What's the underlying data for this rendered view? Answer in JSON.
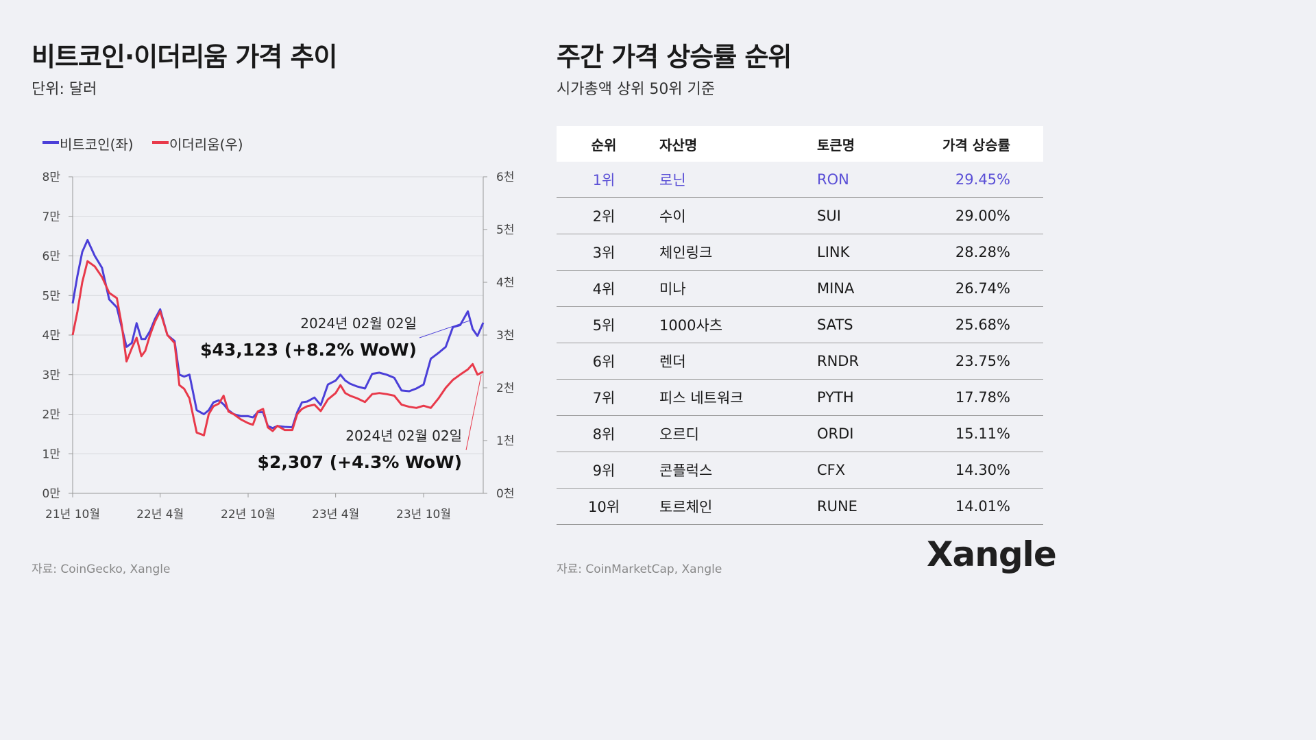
{
  "left": {
    "title": "비트코인·이더리움 가격 추이",
    "subtitle": "단위: 달러",
    "source": "자료: CoinGecko, Xangle"
  },
  "right": {
    "title": "주간 가격 상승률 순위",
    "subtitle": "시가총액 상위 50위 기준",
    "source": "자료: CoinMarketCap, Xangle",
    "logo": "Xangle",
    "highlight_color": "#5a4fd6",
    "columns": [
      "순위",
      "자산명",
      "토큰명",
      "가격 상승률"
    ],
    "rows": [
      [
        "1위",
        "로닌",
        "RON",
        "29.45%"
      ],
      [
        "2위",
        "수이",
        "SUI",
        "29.00%"
      ],
      [
        "3위",
        "체인링크",
        "LINK",
        "28.28%"
      ],
      [
        "4위",
        "미나",
        "MINA",
        "26.74%"
      ],
      [
        "5위",
        "1000사츠",
        "SATS",
        "25.68%"
      ],
      [
        "6위",
        "렌더",
        "RNDR",
        "23.75%"
      ],
      [
        "7위",
        "피스 네트워크",
        "PYTH",
        "17.78%"
      ],
      [
        "8위",
        "오르디",
        "ORDI",
        "15.11%"
      ],
      [
        "9위",
        "콘플럭스",
        "CFX",
        "14.30%"
      ],
      [
        "10위",
        "토르체인",
        "RUNE",
        "14.01%"
      ]
    ]
  },
  "chart_data": {
    "type": "line",
    "legend": [
      "비트코인(좌)",
      "이더리움(우)"
    ],
    "legend_placement": "top-left",
    "grid": true,
    "x_ticks": [
      {
        "date": "2021-10-01",
        "label": "21년 10월"
      },
      {
        "date": "2022-04-01",
        "label": "22년 4월"
      },
      {
        "date": "2022-10-01",
        "label": "22년 10월"
      },
      {
        "date": "2023-04-01",
        "label": "23년 4월"
      },
      {
        "date": "2023-10-01",
        "label": "23년 10월"
      }
    ],
    "xlim": [
      "2021-10-01",
      "2024-02-02"
    ],
    "y_left": {
      "lim": [
        0,
        80000
      ],
      "ticks": [
        "0만",
        "1만",
        "2만",
        "3만",
        "4만",
        "5만",
        "6만",
        "7만",
        "8만"
      ]
    },
    "y_right": {
      "lim": [
        0,
        6000
      ],
      "ticks": [
        "0천",
        "1천",
        "2천",
        "3천",
        "4천",
        "5천",
        "6천"
      ]
    },
    "dates": [
      "2021-10-01",
      "2021-10-11",
      "2021-10-21",
      "2021-11-01",
      "2021-11-16",
      "2021-12-01",
      "2021-12-16",
      "2022-01-01",
      "2022-01-11",
      "2022-01-21",
      "2022-02-01",
      "2022-02-11",
      "2022-02-21",
      "2022-03-01",
      "2022-03-11",
      "2022-03-21",
      "2022-04-01",
      "2022-04-16",
      "2022-05-01",
      "2022-05-11",
      "2022-05-21",
      "2022-06-01",
      "2022-06-16",
      "2022-07-01",
      "2022-07-11",
      "2022-07-21",
      "2022-08-01",
      "2022-08-11",
      "2022-08-21",
      "2022-09-01",
      "2022-09-16",
      "2022-10-01",
      "2022-10-11",
      "2022-10-21",
      "2022-11-01",
      "2022-11-11",
      "2022-11-21",
      "2022-12-01",
      "2022-12-16",
      "2023-01-01",
      "2023-01-11",
      "2023-01-21",
      "2023-02-01",
      "2023-02-16",
      "2023-03-01",
      "2023-03-16",
      "2023-04-01",
      "2023-04-11",
      "2023-04-21",
      "2023-05-01",
      "2023-05-16",
      "2023-06-01",
      "2023-06-16",
      "2023-07-01",
      "2023-07-16",
      "2023-08-01",
      "2023-08-16",
      "2023-09-01",
      "2023-09-16",
      "2023-10-01",
      "2023-10-16",
      "2023-11-01",
      "2023-11-16",
      "2023-12-01",
      "2023-12-16",
      "2024-01-01",
      "2024-01-11",
      "2024-01-21",
      "2024-02-02"
    ],
    "series": [
      {
        "name": "비트코인(좌)",
        "axis": "left",
        "color": "#4b3fd8",
        "values": [
          48000,
          55000,
          61000,
          64000,
          60000,
          57000,
          49000,
          47000,
          42000,
          37000,
          38000,
          43000,
          39000,
          39000,
          41000,
          44000,
          46500,
          40000,
          38500,
          30000,
          29500,
          30000,
          21000,
          20000,
          21000,
          23000,
          23500,
          22500,
          21000,
          20000,
          19500,
          19500,
          19200,
          20500,
          20500,
          17000,
          16500,
          17000,
          16800,
          16700,
          20500,
          23000,
          23200,
          24200,
          22300,
          27500,
          28500,
          30000,
          28500,
          27700,
          27000,
          26500,
          30200,
          30500,
          30000,
          29200,
          26000,
          25800,
          26500,
          27500,
          34000,
          35500,
          37000,
          42000,
          42500,
          46000,
          41500,
          39800,
          43123
        ]
      },
      {
        "name": "이더리움(우)",
        "axis": "right",
        "color": "#e8394a",
        "values": [
          3000,
          3450,
          4000,
          4400,
          4300,
          4100,
          3800,
          3700,
          3200,
          2500,
          2750,
          2950,
          2600,
          2700,
          3000,
          3250,
          3450,
          3000,
          2850,
          2050,
          1980,
          1800,
          1150,
          1100,
          1500,
          1650,
          1700,
          1850,
          1550,
          1500,
          1400,
          1330,
          1300,
          1550,
          1600,
          1250,
          1180,
          1280,
          1200,
          1200,
          1500,
          1600,
          1650,
          1680,
          1560,
          1780,
          1900,
          2050,
          1900,
          1850,
          1800,
          1730,
          1880,
          1900,
          1880,
          1850,
          1680,
          1640,
          1620,
          1660,
          1620,
          1800,
          2000,
          2150,
          2250,
          2350,
          2450,
          2250,
          2307
        ]
      }
    ],
    "annotations": [
      {
        "series": "비트코인(좌)",
        "date_label": "2024년 02월 02일",
        "value_label": "$43,123 (+8.2% WoW)"
      },
      {
        "series": "이더리움(우)",
        "date_label": "2024년 02월 02일",
        "value_label": "$2,307 (+4.3% WoW)"
      }
    ]
  }
}
